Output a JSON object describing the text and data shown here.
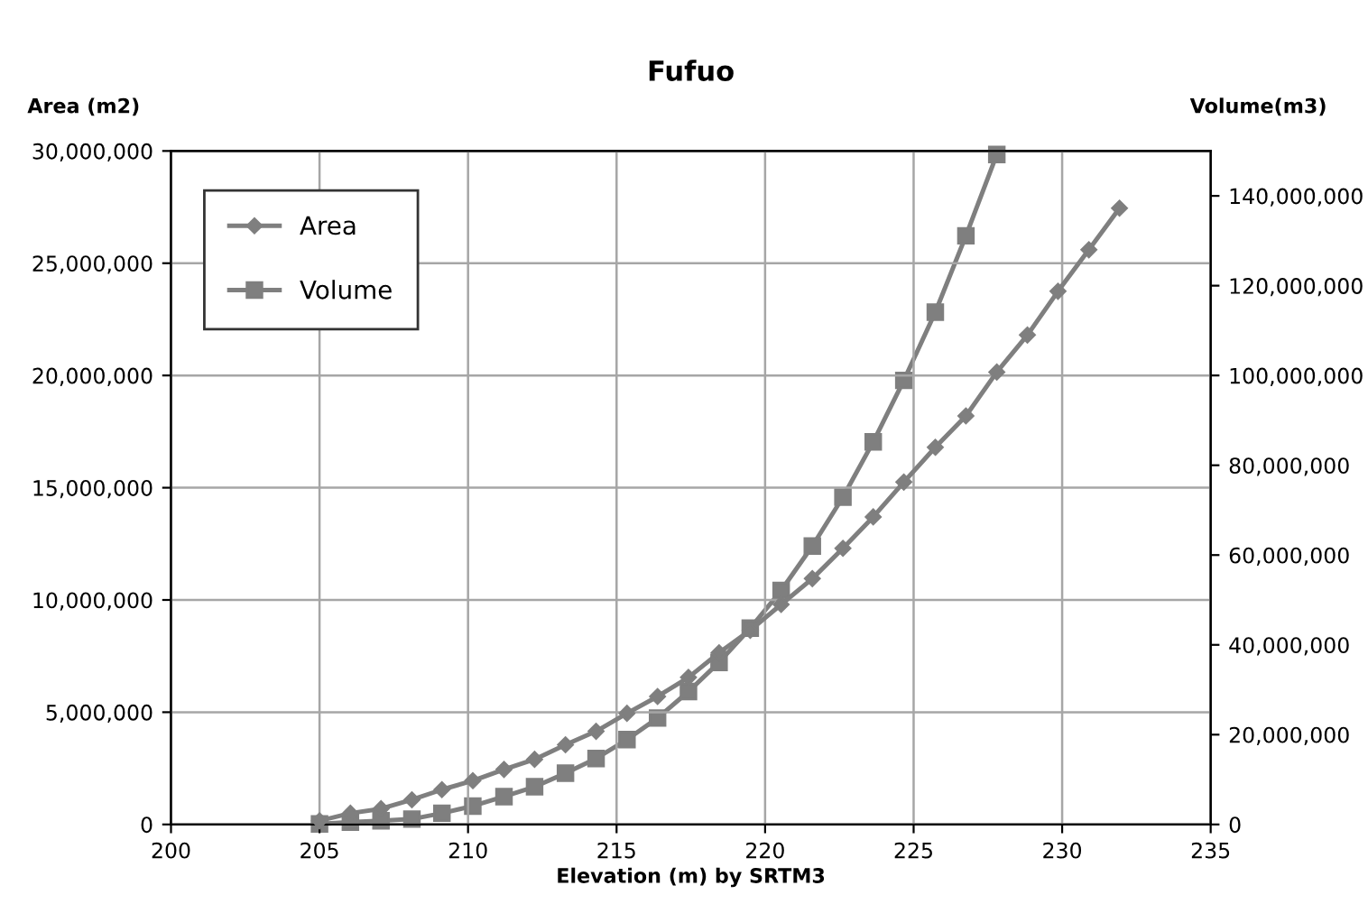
{
  "chart_data": {
    "type": "line",
    "title": "Fufuo",
    "xlabel": "Elevation (m) by SRTM3",
    "ylabel": "Area (m2)",
    "y2label": "Volume(m3)",
    "xlim": [
      200,
      235
    ],
    "xticks": [
      200,
      205,
      210,
      215,
      220,
      225,
      230,
      235
    ],
    "ylim": [
      0,
      30000000
    ],
    "yticks": [
      {
        "value": 0,
        "label": "0"
      },
      {
        "value": 5000000,
        "label": "5,000,000"
      },
      {
        "value": 10000000,
        "label": "10,000,000"
      },
      {
        "value": 15000000,
        "label": "15,000,000"
      },
      {
        "value": 20000000,
        "label": "20,000,000"
      },
      {
        "value": 25000000,
        "label": "25,000,000"
      },
      {
        "value": 30000000,
        "label": "30,000,000"
      }
    ],
    "y2lim": [
      0,
      150000000
    ],
    "y2ticks": [
      {
        "value": 0,
        "label": "0"
      },
      {
        "value": 20000000,
        "label": "20,000,000"
      },
      {
        "value": 40000000,
        "label": "40,000,000"
      },
      {
        "value": 60000000,
        "label": "60,000,000"
      },
      {
        "value": 80000000,
        "label": "80,000,000"
      },
      {
        "value": 100000000,
        "label": "100,000,000"
      },
      {
        "value": 120000000,
        "label": "120,000,000"
      },
      {
        "value": 140000000,
        "label": "140,000,000"
      }
    ],
    "grid": true,
    "legend": "top left",
    "line_style": "solid",
    "series": [
      {
        "name": "Area",
        "color": "#7f7f7f",
        "marker": "diamond",
        "x": [
          205.0,
          206.04,
          207.07,
          208.11,
          209.12,
          210.16,
          211.21,
          212.24,
          213.28,
          214.31,
          215.35,
          216.38,
          217.42,
          218.45,
          219.5,
          220.54,
          221.59,
          222.62,
          223.64,
          224.67,
          225.73,
          226.76,
          227.8,
          228.83,
          229.86,
          230.9,
          231.93
        ],
        "values": [
          160000,
          500000,
          700000,
          1100000,
          1550000,
          1950000,
          2450000,
          2900000,
          3550000,
          4150000,
          4950000,
          5700000,
          6550000,
          7650000,
          8650000,
          9800000,
          10950000,
          12300000,
          13700000,
          15250000,
          16800000,
          18200000,
          20150000,
          21800000,
          23750000,
          25600000,
          27450000
        ]
      },
      {
        "name": "Volume",
        "color": "#7f7f7f",
        "marker": "square",
        "axis": "y2",
        "x": [
          205.0,
          206.04,
          207.07,
          208.11,
          209.12,
          210.16,
          211.21,
          212.24,
          213.28,
          214.31,
          215.35,
          216.38,
          217.42,
          218.45,
          219.5,
          220.54,
          221.59,
          222.62,
          223.64,
          224.67,
          225.73,
          226.76,
          227.8
        ],
        "values": [
          100000,
          500000,
          800000,
          1200000,
          2500000,
          4100000,
          6200000,
          8400000,
          11400000,
          14700000,
          18900000,
          23700000,
          29600000,
          36100000,
          43700000,
          52100000,
          62000000,
          72900000,
          85200000,
          98900000,
          114100000,
          131100000,
          149200000
        ]
      }
    ]
  }
}
